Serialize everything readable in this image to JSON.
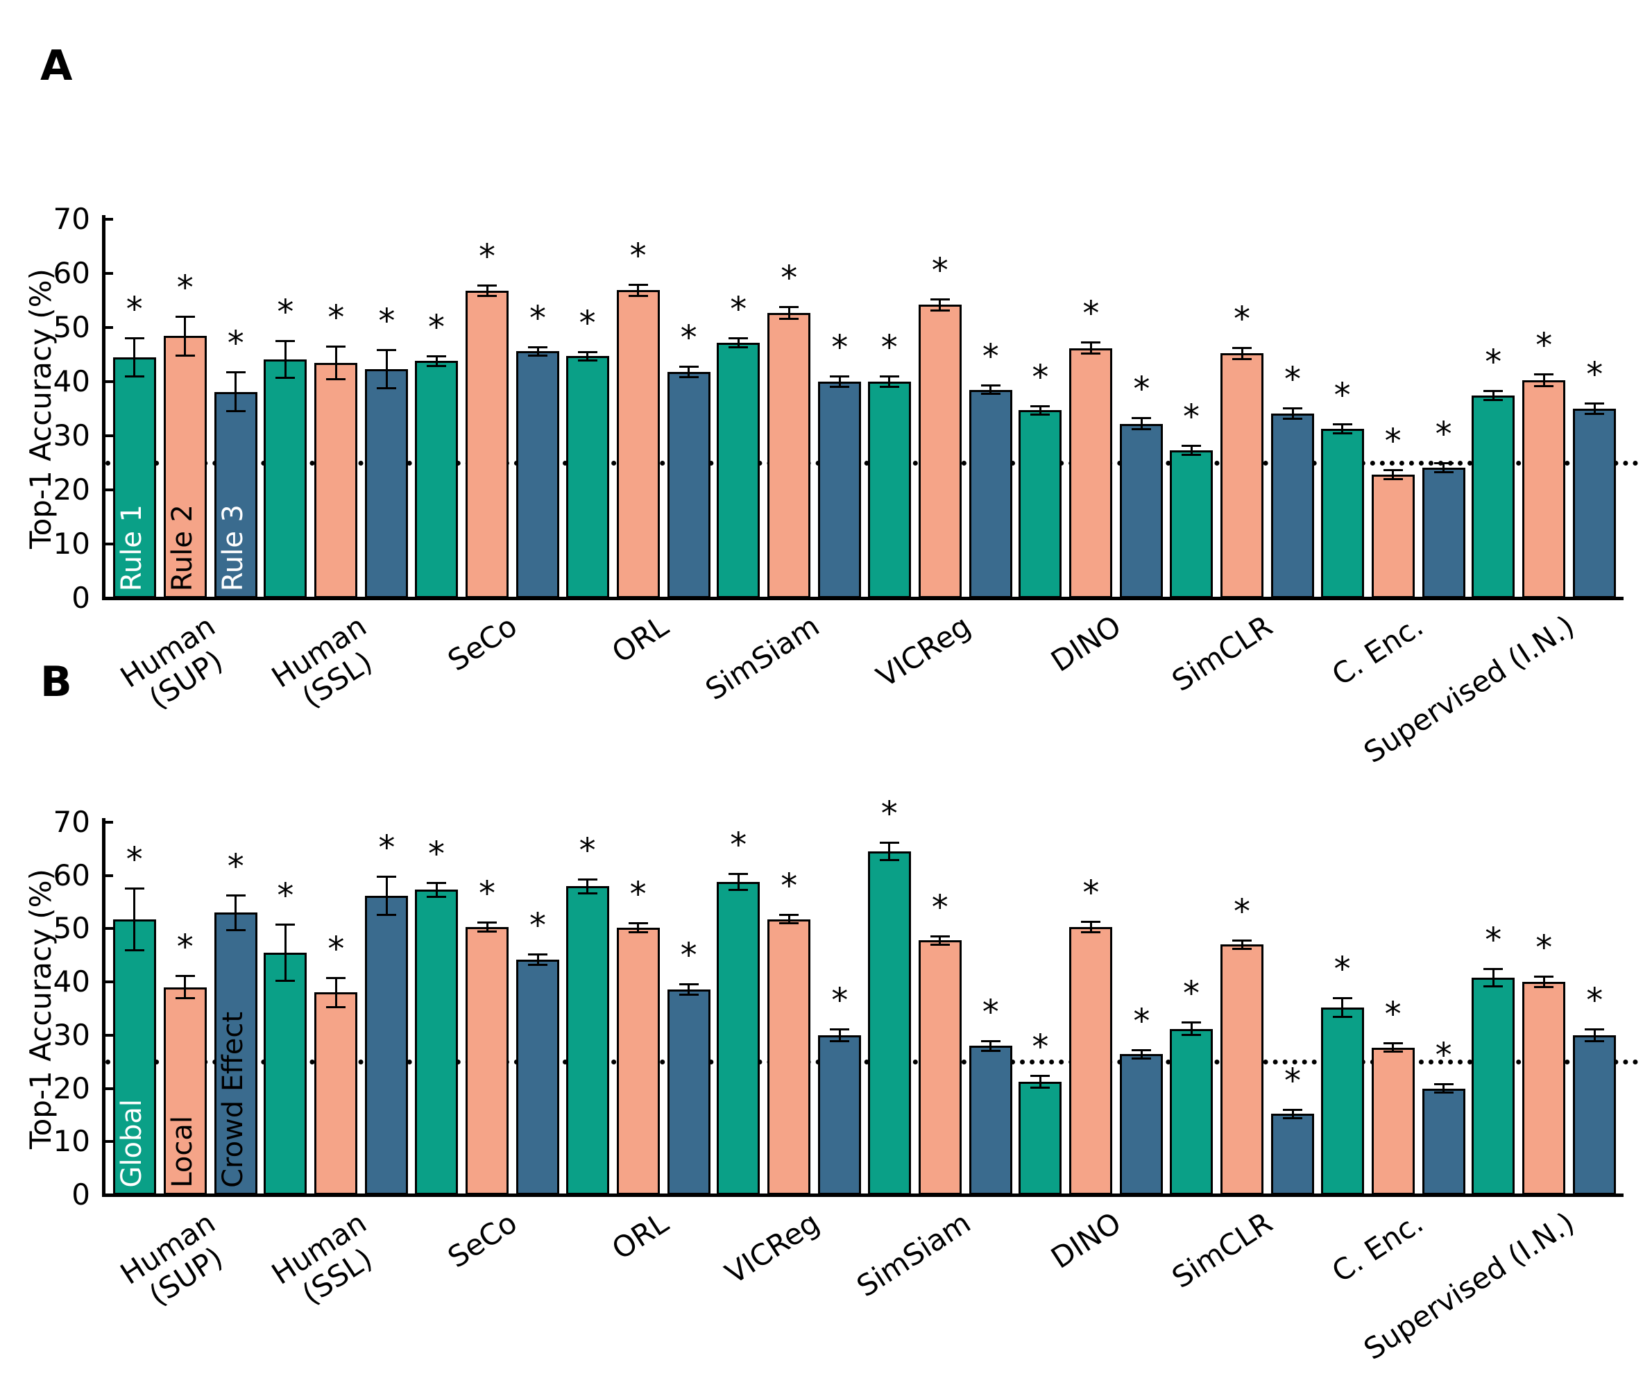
{
  "figure": {
    "panels": [
      {
        "panel_label": "A"
      },
      {
        "panel_label": "B"
      }
    ],
    "significance_marker": "*"
  },
  "colors": {
    "series1_teal": "#0aa087",
    "series2_salmon": "#f5a488",
    "series3_blue": "#3a6b8e",
    "axis_black": "#000000",
    "background": "#ffffff"
  },
  "chart_data": [
    {
      "panel": "A",
      "type": "bar",
      "ylabel": "Top-1 Accuracy (%)",
      "ylim": [
        0,
        70
      ],
      "yticks": [
        0,
        10,
        20,
        30,
        40,
        50,
        60,
        70
      ],
      "grid": false,
      "chance_line": 25,
      "legend_position": "inside-first-group-vertical",
      "legend_labels": [
        "Rule 1",
        "Rule 2",
        "Rule 3"
      ],
      "legend_text_colors": [
        "#ffffff",
        "#000000",
        "#ffffff"
      ],
      "categories": [
        "Human\n(SUP)",
        "Human\n(SSL)",
        "SeCo",
        "ORL",
        "SimSiam",
        "VICReg",
        "DINO",
        "SimCLR",
        "C. Enc.",
        "Supervised (I.N.)"
      ],
      "series": [
        {
          "name": "Rule 1",
          "color_key": "series1_teal",
          "values": [
            44.5,
            44.1,
            43.8,
            44.7,
            47.2,
            40.0,
            34.7,
            27.3,
            31.3,
            37.4
          ],
          "errors": [
            3.7,
            3.6,
            1.1,
            1.0,
            1.0,
            1.2,
            1.0,
            1.0,
            1.0,
            1.0
          ]
        },
        {
          "name": "Rule 2",
          "color_key": "series2_salmon",
          "values": [
            48.4,
            43.5,
            56.8,
            56.9,
            52.7,
            54.2,
            46.2,
            45.2,
            22.8,
            40.3
          ],
          "errors": [
            3.8,
            3.2,
            1.2,
            1.2,
            1.3,
            1.2,
            1.2,
            1.2,
            1.0,
            1.3
          ]
        },
        {
          "name": "Rule 3",
          "color_key": "series3_blue",
          "values": [
            38.1,
            42.3,
            45.6,
            41.8,
            40.0,
            38.5,
            32.2,
            34.1,
            24.1,
            35.0
          ],
          "errors": [
            3.8,
            3.7,
            1.0,
            1.2,
            1.2,
            1.0,
            1.2,
            1.2,
            1.0,
            1.1
          ]
        }
      ],
      "all_bars_significant": true
    },
    {
      "panel": "B",
      "type": "bar",
      "ylabel": "Top-1 Accuracy (%)",
      "ylim": [
        0,
        70
      ],
      "yticks": [
        0,
        10,
        20,
        30,
        40,
        50,
        60,
        70
      ],
      "grid": false,
      "chance_line": 25,
      "legend_position": "inside-first-group-vertical",
      "legend_labels": [
        "Global",
        "Local",
        "Crowd Effect"
      ],
      "legend_text_colors": [
        "#ffffff",
        "#000000",
        "#000000"
      ],
      "categories": [
        "Human\n(SUP)",
        "Human\n(SSL)",
        "SeCo",
        "ORL",
        "VICReg",
        "SimSiam",
        "DINO",
        "SimCLR",
        "C. Enc.",
        "Supervised (I.N.)"
      ],
      "series": [
        {
          "name": "Global",
          "color_key": "series1_teal",
          "values": [
            51.8,
            45.5,
            57.3,
            58.0,
            58.8,
            64.5,
            21.3,
            31.2,
            35.2,
            40.8
          ],
          "errors": [
            6.0,
            5.5,
            1.5,
            1.5,
            1.7,
            1.8,
            1.3,
            1.4,
            1.9,
            1.8
          ]
        },
        {
          "name": "Local",
          "color_key": "series2_salmon",
          "values": [
            39.0,
            38.0,
            50.3,
            50.2,
            51.8,
            47.8,
            50.3,
            47.0,
            27.7,
            40.0
          ],
          "errors": [
            2.3,
            2.9,
            1.0,
            1.0,
            1.0,
            1.0,
            1.2,
            1.0,
            1.0,
            1.2
          ]
        },
        {
          "name": "Crowd Effect",
          "color_key": "series3_blue",
          "values": [
            53.0,
            56.2,
            44.2,
            38.6,
            30.0,
            28.0,
            26.4,
            15.2,
            20.0,
            30.0
          ],
          "errors": [
            3.5,
            3.8,
            1.2,
            1.2,
            1.3,
            1.1,
            1.0,
            1.0,
            1.0,
            1.3
          ]
        }
      ],
      "all_bars_significant": true
    }
  ]
}
